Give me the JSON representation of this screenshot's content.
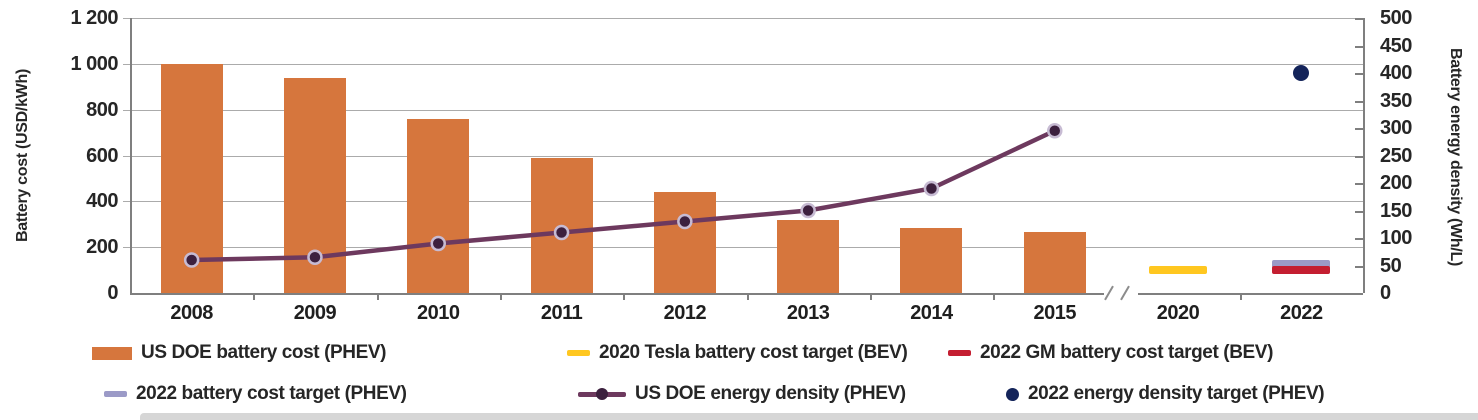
{
  "chart_data": {
    "type": "combo-bar-line",
    "categories": [
      "2008",
      "2009",
      "2010",
      "2011",
      "2012",
      "2013",
      "2014",
      "2015",
      "2020",
      "2022"
    ],
    "axis_break_between": [
      "2015",
      "2020"
    ],
    "left_axis": {
      "label": "Battery cost (USD/kWh)",
      "min": 0,
      "max": 1200,
      "step": 200,
      "tick_labels": [
        "1 200",
        "1 000",
        "800",
        "600",
        "400",
        "200",
        "0"
      ]
    },
    "right_axis": {
      "label": "Battery energy density (Wh/L)",
      "min": 0,
      "max": 500,
      "step": 50,
      "tick_labels": [
        "500",
        "450",
        "400",
        "350",
        "300",
        "250",
        "200",
        "150",
        "100",
        "50",
        "0"
      ]
    },
    "grid": "horizontal",
    "legend_position": "bottom",
    "series": [
      {
        "name": "US DOE battery cost (PHEV)",
        "type": "bar",
        "axis": "left",
        "color": "#d6763d",
        "categories": [
          "2008",
          "2009",
          "2010",
          "2011",
          "2012",
          "2013",
          "2014",
          "2015"
        ],
        "values": [
          1000,
          940,
          760,
          590,
          440,
          320,
          285,
          265
        ]
      },
      {
        "name": "US DOE energy density (PHEV)",
        "type": "line",
        "axis": "right",
        "color": "#6d395e",
        "marker_fill": "#3c203e",
        "marker_ring": "#c7bbd3",
        "categories": [
          "2008",
          "2009",
          "2010",
          "2011",
          "2012",
          "2013",
          "2014",
          "2015"
        ],
        "values": [
          60,
          65,
          90,
          110,
          130,
          150,
          190,
          295
        ]
      },
      {
        "name": "2020 Tesla battery cost target (BEV)",
        "type": "dash",
        "axis": "left",
        "color": "#ffc720",
        "category": "2020",
        "value": 100
      },
      {
        "name": "2022 battery cost target (PHEV)",
        "type": "dash",
        "axis": "left",
        "color": "#9b9ac7",
        "category": "2022",
        "value": 125
      },
      {
        "name": "2022 GM battery cost target (BEV)",
        "type": "dash",
        "axis": "left",
        "color": "#c41e31",
        "category": "2022",
        "value": 100
      },
      {
        "name": "2022 energy density target (PHEV)",
        "type": "dot",
        "axis": "right",
        "color": "#14245a",
        "category": "2022",
        "value": 400
      }
    ]
  },
  "legend": {
    "items": [
      {
        "label": "US DOE battery cost (PHEV)",
        "swatch": "bar",
        "color": "#d6763d"
      },
      {
        "label": "2020 Tesla battery cost target (BEV)",
        "swatch": "dash",
        "color": "#ffc720"
      },
      {
        "label": "2022 GM battery cost target (BEV)",
        "swatch": "dash",
        "color": "#c41e31"
      },
      {
        "label": "2022 battery cost target (PHEV)",
        "swatch": "dash",
        "color": "#9b9ac7"
      },
      {
        "label": "US DOE energy density (PHEV)",
        "swatch": "line",
        "color": "#6d395e",
        "dot_color": "#3c203e"
      },
      {
        "label": "2022 energy density target (PHEV)",
        "swatch": "dot",
        "color": "#14245a"
      }
    ]
  },
  "colors": {
    "grid": "#ababab",
    "axis": "#7f7f7f",
    "text": "#262626"
  }
}
